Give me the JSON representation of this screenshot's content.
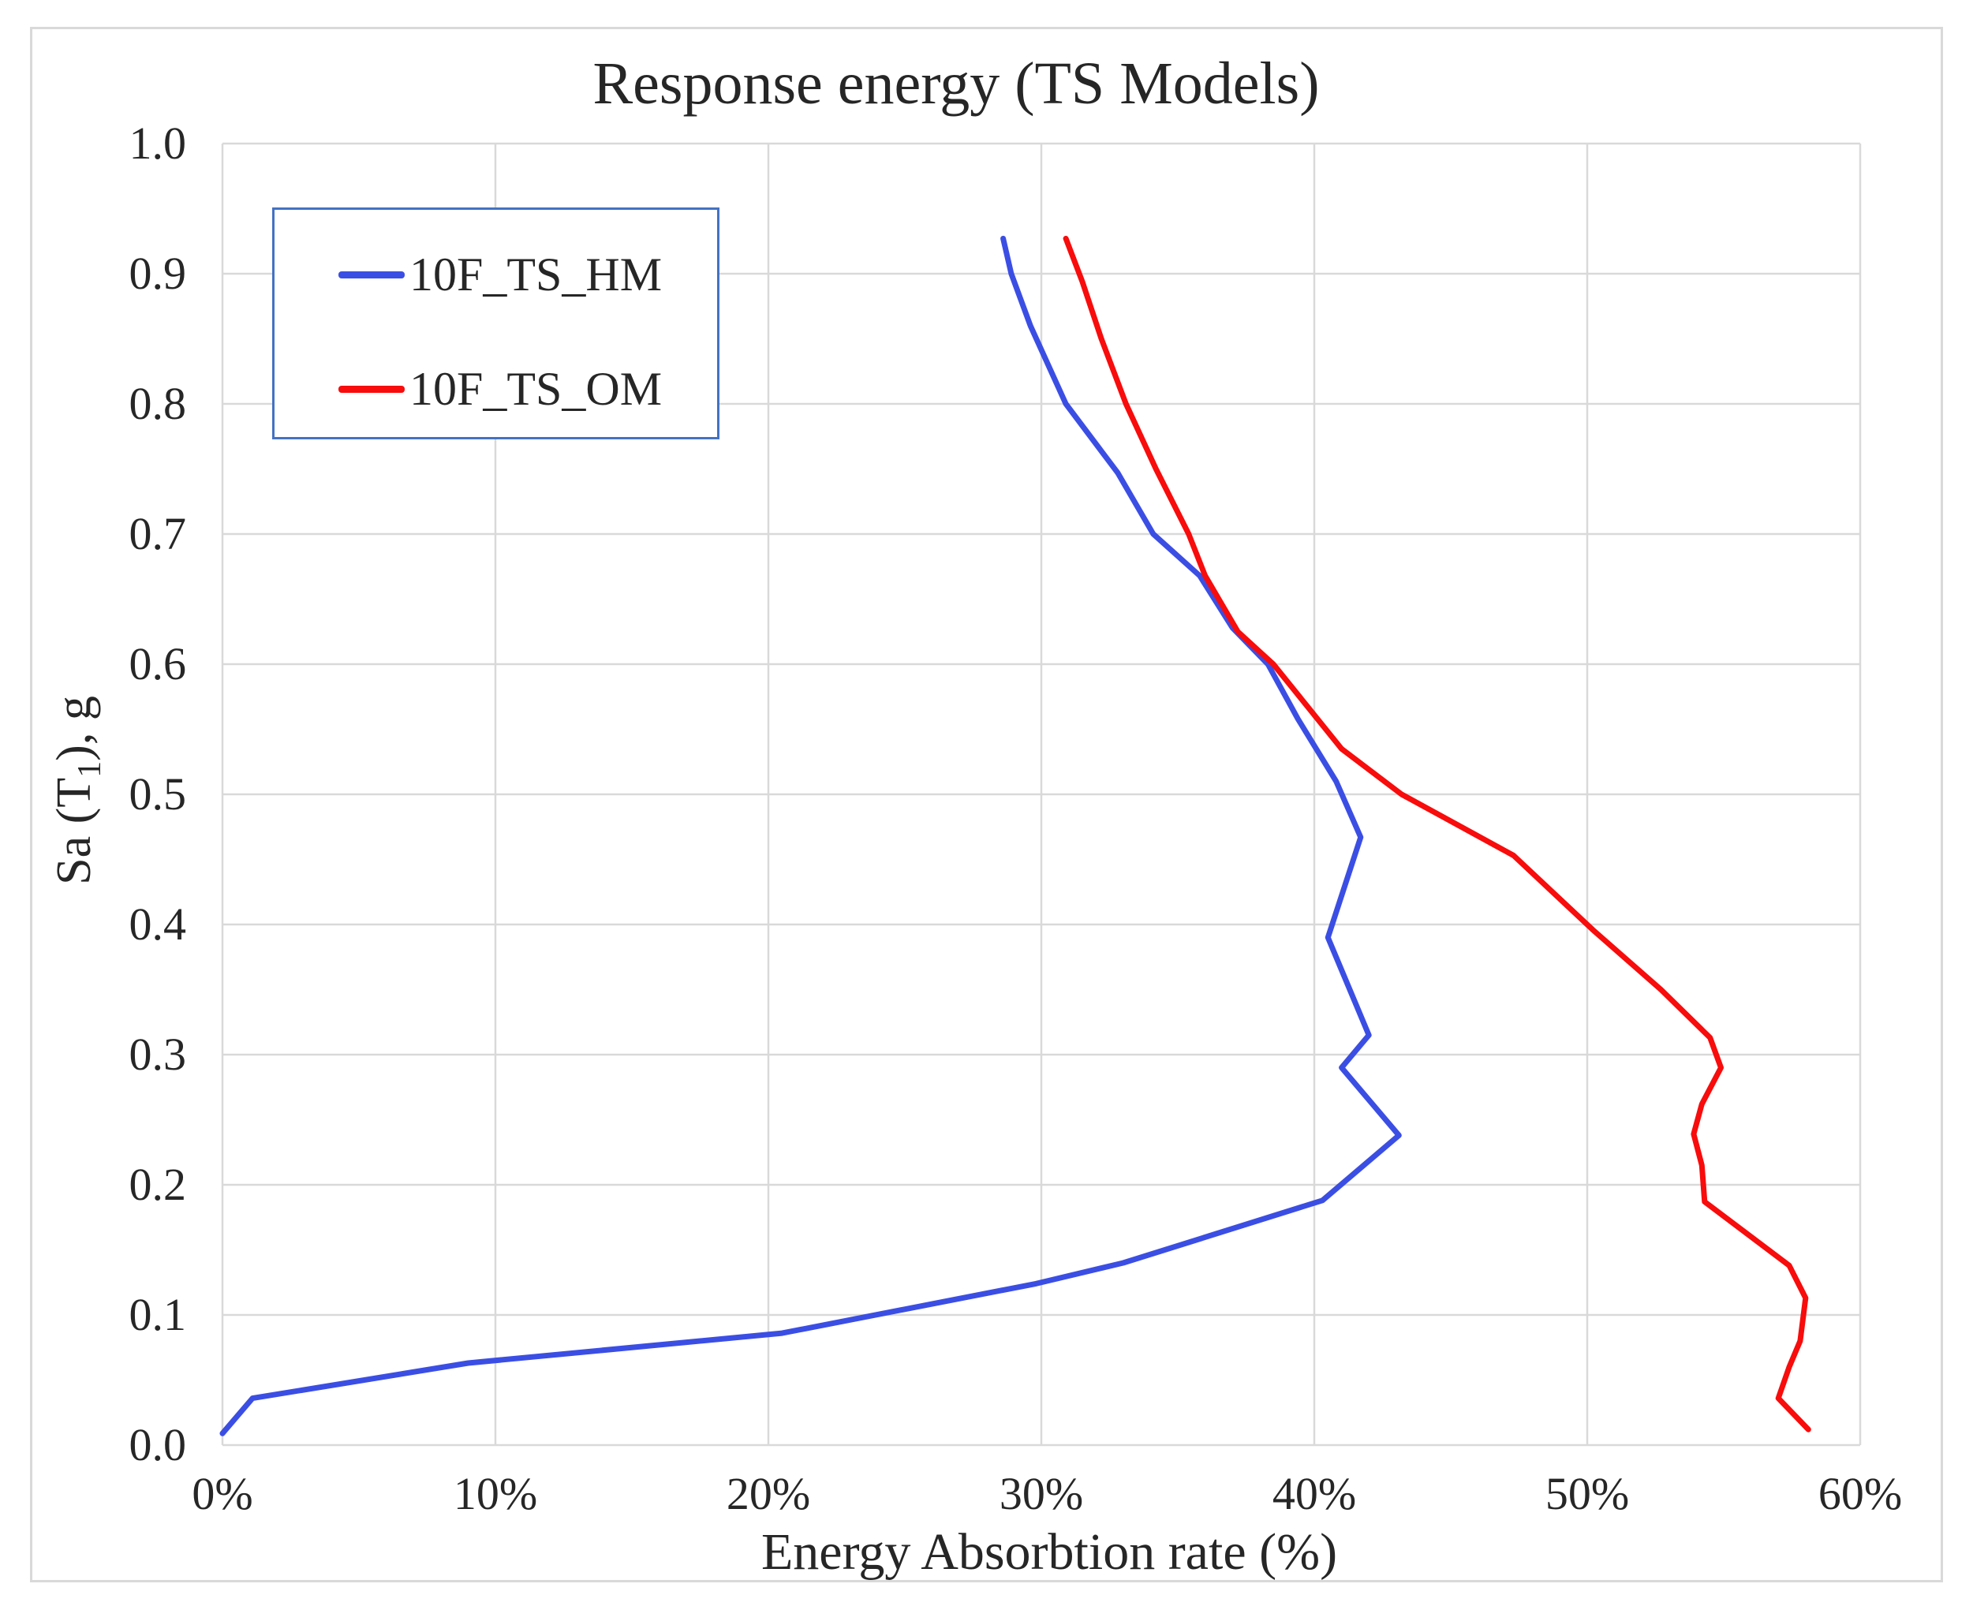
{
  "figure": {
    "title": "Response energy (TS Models)"
  },
  "colors": {
    "gridline": "#d9d9d9",
    "frame_border": "#d9d9d9",
    "legend_border": "#4472c4",
    "text": "#262626",
    "series_hm": "#3b4ee4",
    "series_om": "#f80c0c",
    "background": "#ffffff"
  },
  "chart_data": {
    "type": "line",
    "title": "Response energy (TS Models)",
    "xlabel": "Energy Absorbtion rate (%)",
    "ylabel": "Sa (T₁), g",
    "ylabel_parts": {
      "prefix": "Sa (T",
      "sub": "1",
      "suffix": "), g"
    },
    "xlim": [
      0,
      60
    ],
    "ylim": [
      0,
      1
    ],
    "x_unit": "percent",
    "y_unit": "g",
    "grid": true,
    "legend_position": "upper-left-inside",
    "x_ticks": [
      0,
      10,
      20,
      30,
      40,
      50,
      60
    ],
    "x_tick_labels": [
      "0%",
      "10%",
      "20%",
      "30%",
      "40%",
      "50%",
      "60%"
    ],
    "y_ticks": [
      0.0,
      0.1,
      0.2,
      0.3,
      0.4,
      0.5,
      0.6,
      0.7,
      0.8,
      0.9,
      1.0
    ],
    "y_tick_labels": [
      "0.0",
      "0.1",
      "0.2",
      "0.3",
      "0.4",
      "0.5",
      "0.6",
      "0.7",
      "0.8",
      "0.9",
      "1.0"
    ],
    "series": [
      {
        "name": "10F_TS_HM",
        "color": "#3b4ee4",
        "points": [
          [
            0.0,
            0.009
          ],
          [
            1.1,
            0.036
          ],
          [
            9.0,
            0.063
          ],
          [
            20.5,
            0.086
          ],
          [
            29.8,
            0.124
          ],
          [
            33.0,
            0.14
          ],
          [
            40.3,
            0.188
          ],
          [
            43.1,
            0.238
          ],
          [
            41.0,
            0.29
          ],
          [
            42.0,
            0.315
          ],
          [
            40.5,
            0.39
          ],
          [
            41.7,
            0.467
          ],
          [
            40.8,
            0.51
          ],
          [
            39.4,
            0.558
          ],
          [
            38.3,
            0.6
          ],
          [
            37.0,
            0.628
          ],
          [
            35.8,
            0.668
          ],
          [
            34.1,
            0.7
          ],
          [
            32.8,
            0.747
          ],
          [
            30.9,
            0.8
          ],
          [
            29.6,
            0.86
          ],
          [
            28.9,
            0.9
          ],
          [
            28.6,
            0.927
          ]
        ]
      },
      {
        "name": "10F_TS_OM",
        "color": "#f80c0c",
        "points": [
          [
            58.1,
            0.012
          ],
          [
            57.0,
            0.036
          ],
          [
            57.4,
            0.06
          ],
          [
            57.8,
            0.08
          ],
          [
            58.0,
            0.113
          ],
          [
            57.4,
            0.138
          ],
          [
            54.3,
            0.187
          ],
          [
            54.2,
            0.215
          ],
          [
            53.9,
            0.239
          ],
          [
            54.2,
            0.262
          ],
          [
            54.9,
            0.29
          ],
          [
            54.5,
            0.313
          ],
          [
            52.7,
            0.35
          ],
          [
            50.2,
            0.396
          ],
          [
            47.3,
            0.453
          ],
          [
            44.6,
            0.484
          ],
          [
            43.2,
            0.5
          ],
          [
            41.0,
            0.535
          ],
          [
            38.5,
            0.6
          ],
          [
            37.2,
            0.625
          ],
          [
            36.0,
            0.668
          ],
          [
            35.4,
            0.7
          ],
          [
            34.2,
            0.75
          ],
          [
            33.1,
            0.8
          ],
          [
            32.2,
            0.85
          ],
          [
            31.5,
            0.894
          ],
          [
            30.9,
            0.927
          ]
        ]
      }
    ]
  }
}
